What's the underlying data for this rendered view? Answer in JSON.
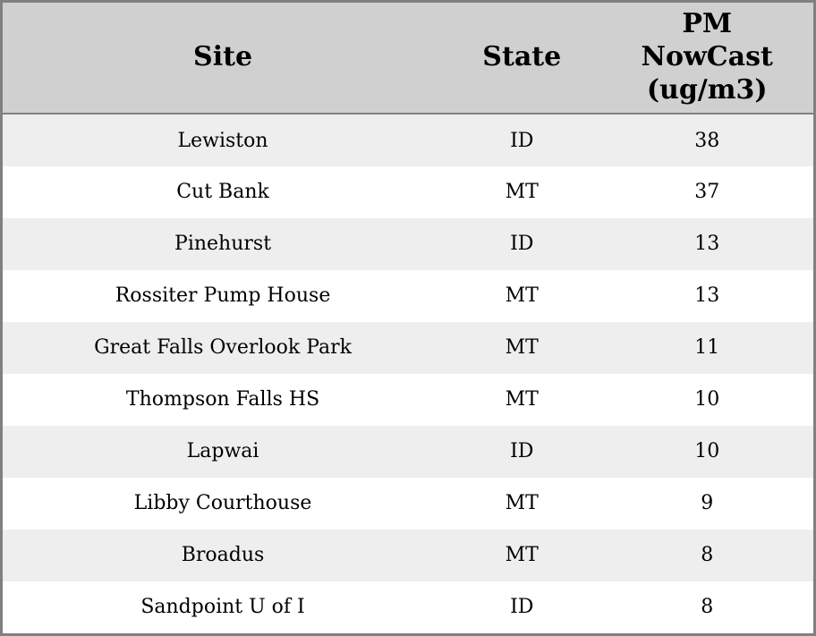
{
  "table": {
    "columns": [
      {
        "id": "site",
        "label": "Site"
      },
      {
        "id": "state",
        "label": "State"
      },
      {
        "id": "pm_nowcast",
        "label": "PM\nNowCast\n(ug/m3)"
      }
    ],
    "rows": [
      {
        "site": "Lewiston",
        "state": "ID",
        "pm_nowcast": "38"
      },
      {
        "site": "Cut Bank",
        "state": "MT",
        "pm_nowcast": "37"
      },
      {
        "site": "Pinehurst",
        "state": "ID",
        "pm_nowcast": "13"
      },
      {
        "site": "Rossiter Pump House",
        "state": "MT",
        "pm_nowcast": "13"
      },
      {
        "site": "Great Falls Overlook Park",
        "state": "MT",
        "pm_nowcast": "11"
      },
      {
        "site": "Thompson Falls HS",
        "state": "MT",
        "pm_nowcast": "10"
      },
      {
        "site": "Lapwai",
        "state": "ID",
        "pm_nowcast": "10"
      },
      {
        "site": "Libby Courthouse",
        "state": "MT",
        "pm_nowcast": "9"
      },
      {
        "site": "Broadus",
        "state": "MT",
        "pm_nowcast": "8"
      },
      {
        "site": "Sandpoint U of I",
        "state": "ID",
        "pm_nowcast": "8"
      }
    ]
  },
  "colors": {
    "header_bg": "#d0d0d0",
    "row_alt_bg": "#eeeeee",
    "row_bg": "#ffffff",
    "border": "#808080",
    "text": "#000000"
  },
  "chart_data": {
    "type": "table",
    "title": "",
    "columns": [
      "Site",
      "State",
      "PM NowCast (ug/m3)"
    ],
    "rows": [
      [
        "Lewiston",
        "ID",
        38
      ],
      [
        "Cut Bank",
        "MT",
        37
      ],
      [
        "Pinehurst",
        "ID",
        13
      ],
      [
        "Rossiter Pump House",
        "MT",
        13
      ],
      [
        "Great Falls Overlook Park",
        "MT",
        11
      ],
      [
        "Thompson Falls HS",
        "MT",
        10
      ],
      [
        "Lapwai",
        "ID",
        10
      ],
      [
        "Libby Courthouse",
        "MT",
        9
      ],
      [
        "Broadus",
        "MT",
        8
      ],
      [
        "Sandpoint U of I",
        "ID",
        8
      ]
    ]
  }
}
